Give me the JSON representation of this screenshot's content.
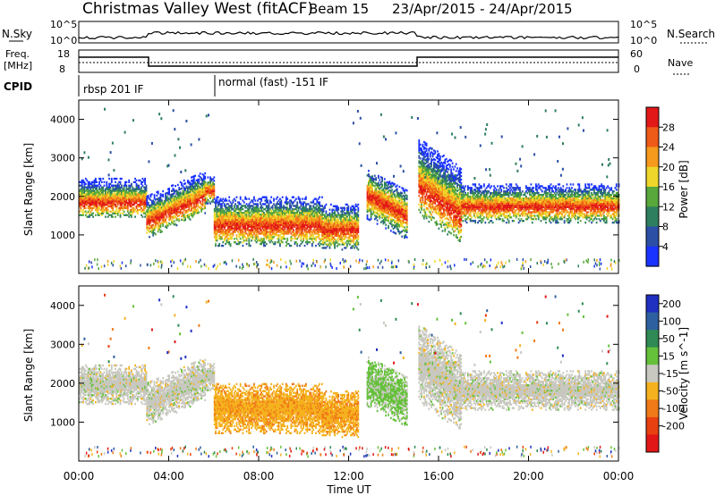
{
  "header": {
    "station": "Christmas Valley West (fitACF)",
    "beam": "Beam 15",
    "dates": "23/Apr/2015 - 24/Apr/2015"
  },
  "strip": {
    "nsky_label": "N.Sky",
    "nsearch_label": "N.Search",
    "nave_label": "Nave",
    "freq_label_1": "Freq.",
    "freq_label_2": "[MHz]",
    "cpid_label": "CPID",
    "count_top_tick": "10^5",
    "count_bottom_tick": "10^0",
    "freq_ticks": [
      "18",
      "8"
    ],
    "nave_ticks": [
      "60",
      "0"
    ],
    "cpid_segments": [
      {
        "label": "rbsp 201 IF",
        "start_hour": 0
      },
      {
        "label": "normal (fast) -151 IF",
        "start_hour": 6
      }
    ]
  },
  "chart_data": [
    {
      "type": "heatmap",
      "name": "power",
      "ylabel": "Slant Range [km]",
      "xlabel": "",
      "xlim_hours": [
        0,
        24
      ],
      "ylim": [
        0,
        4500
      ],
      "y_ticks": [
        1000,
        2000,
        3000,
        4000
      ],
      "colorbar": {
        "label": "Power [dB]",
        "ticks": [
          "4",
          "8",
          "12",
          "16",
          "20",
          "24",
          "28"
        ],
        "colors": [
          "#1a33ff",
          "#2c4fa6",
          "#2e7f5f",
          "#58a83c",
          "#eed72a",
          "#f59a1c",
          "#ee5a18",
          "#e21818"
        ]
      }
    },
    {
      "type": "heatmap",
      "name": "velocity",
      "ylabel": "Slant Range [km]",
      "xlabel": "Time UT",
      "xlim_hours": [
        0,
        24
      ],
      "ylim": [
        0,
        4500
      ],
      "y_ticks": [
        1000,
        2000,
        3000,
        4000
      ],
      "x_ticks": [
        "00:00",
        "04:00",
        "08:00",
        "12:00",
        "16:00",
        "20:00",
        "00:00"
      ],
      "colorbar": {
        "label": "Velocity [m s^-1]",
        "ticks": [
          "200",
          "100",
          "50",
          "15",
          "-15",
          "-50",
          "-100",
          "-200"
        ],
        "colors": [
          "#2030c0",
          "#2e5f9f",
          "#2f8a55",
          "#65c13a",
          "#c8c8c0",
          "#f5b21e",
          "#f07a18",
          "#e84010",
          "#e11717"
        ]
      }
    }
  ]
}
